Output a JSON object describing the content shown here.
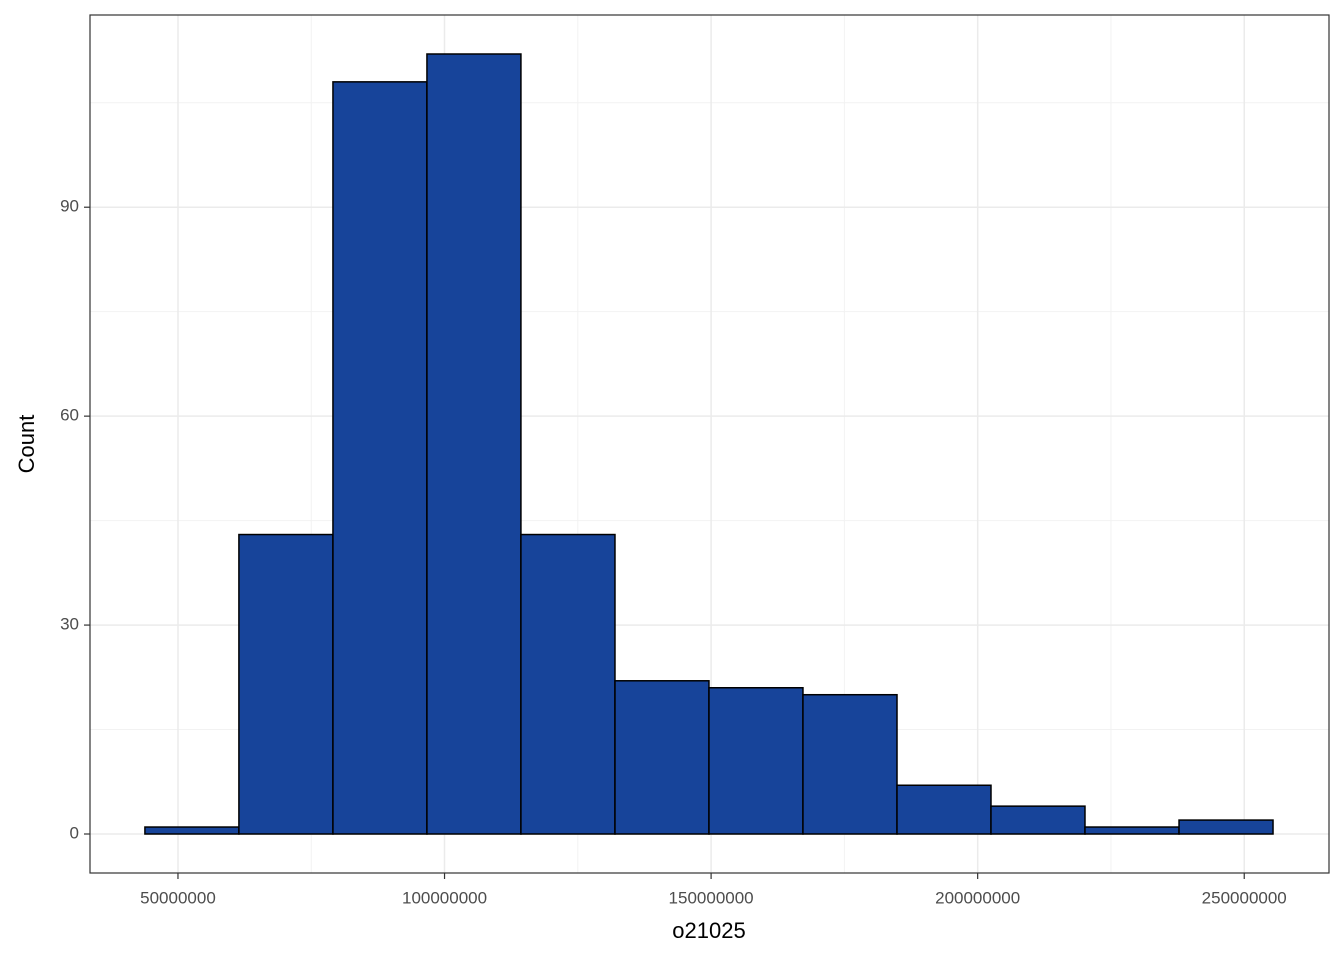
{
  "chart_data": {
    "type": "histogram",
    "x_label": "o21025",
    "y_label": "Count",
    "bins": [
      43800000,
      61430000,
      79070000,
      96700000,
      114330000,
      131970000,
      149600000,
      167230000,
      184870000,
      202500000,
      220130000,
      237770000,
      255400000
    ],
    "counts": [
      1,
      43,
      108,
      112,
      43,
      22,
      21,
      20,
      7,
      4,
      1,
      2
    ],
    "color": "#17449a",
    "edge_color": "#000000",
    "xlim": [
      33500000,
      265900000
    ],
    "xticks": [
      50000000,
      100000000,
      150000000,
      200000000,
      250000000
    ],
    "ylim": [
      -5.6,
      117.6
    ],
    "yticks": [
      0,
      30,
      60,
      90
    ],
    "grid": true,
    "minor_grid": true
  }
}
